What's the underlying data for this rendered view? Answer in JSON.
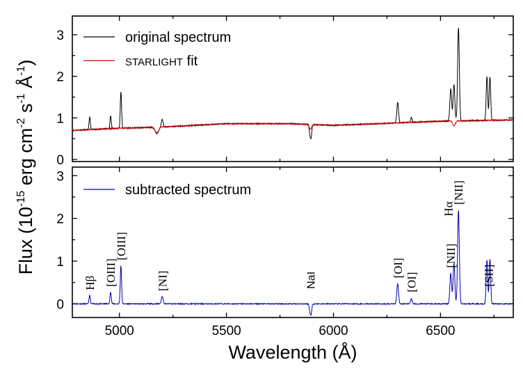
{
  "chart_data": [
    {
      "type": "line",
      "panel": "top",
      "xlim": [
        4780,
        6840
      ],
      "ylim": [
        -0.05,
        3.45
      ],
      "yticks": [
        0,
        1,
        2,
        3
      ],
      "xticks": [
        5000,
        5500,
        6000,
        6500
      ],
      "series": [
        {
          "name": "original spectrum",
          "color": "#000000",
          "baseline": [
            [
              4780,
              0.7
            ],
            [
              5000,
              0.75
            ],
            [
              5200,
              0.78
            ],
            [
              5500,
              0.86
            ],
            [
              5800,
              0.86
            ],
            [
              6000,
              0.82
            ],
            [
              6200,
              0.86
            ],
            [
              6500,
              0.92
            ],
            [
              6840,
              0.95
            ]
          ],
          "features": [
            [
              4861,
              0.3,
              3
            ],
            [
              4959,
              0.32,
              3
            ],
            [
              5007,
              0.88,
              3
            ],
            [
              5200,
              0.2,
              4
            ],
            [
              5175,
              -0.15,
              8
            ],
            [
              5890,
              -0.25,
              3
            ],
            [
              5896,
              -0.28,
              3
            ],
            [
              6300,
              0.5,
              4
            ],
            [
              6364,
              0.12,
              4
            ],
            [
              6548,
              0.78,
              4
            ],
            [
              6563,
              0.88,
              4
            ],
            [
              6584,
              2.25,
              4
            ],
            [
              6717,
              1.05,
              3.5
            ],
            [
              6731,
              1.05,
              3.5
            ]
          ]
        },
        {
          "name": "STARLIGHT fit",
          "color": "#cc0000",
          "baseline": [
            [
              4780,
              0.7
            ],
            [
              5000,
              0.75
            ],
            [
              5200,
              0.78
            ],
            [
              5500,
              0.86
            ],
            [
              5800,
              0.86
            ],
            [
              6000,
              0.82
            ],
            [
              6200,
              0.86
            ],
            [
              6500,
              0.92
            ],
            [
              6840,
              0.95
            ]
          ],
          "features": [
            [
              5175,
              -0.15,
              8
            ],
            [
              5892,
              -0.12,
              5
            ],
            [
              6563,
              -0.12,
              6
            ]
          ]
        }
      ],
      "legend": [
        "original spectrum",
        "STARLIGHT fit"
      ],
      "legend_position": "top-left"
    },
    {
      "type": "line",
      "panel": "bottom",
      "xlim": [
        4780,
        6840
      ],
      "ylim": [
        -0.32,
        3.2
      ],
      "yticks": [
        0,
        1,
        2,
        3
      ],
      "xticks": [
        5000,
        5500,
        6000,
        6500
      ],
      "series": [
        {
          "name": "subtracted spectrum",
          "color": "#0000aa",
          "baseline": [
            [
              4780,
              0.0
            ],
            [
              6840,
              0.0
            ]
          ],
          "features": [
            [
              4861,
              0.2,
              3
            ],
            [
              4959,
              0.28,
              3
            ],
            [
              5007,
              0.9,
              3
            ],
            [
              5200,
              0.18,
              4
            ],
            [
              5890,
              -0.18,
              3
            ],
            [
              5896,
              -0.22,
              3
            ],
            [
              6300,
              0.48,
              4
            ],
            [
              6364,
              0.12,
              4
            ],
            [
              6548,
              0.72,
              4
            ],
            [
              6563,
              0.95,
              4
            ],
            [
              6584,
              2.2,
              4
            ],
            [
              6717,
              1.02,
              3.5
            ],
            [
              6731,
              1.05,
              3.5
            ]
          ]
        }
      ],
      "legend": [
        "subtracted spectrum"
      ],
      "legend_position": "top-left",
      "annotations": [
        {
          "text": "Hβ",
          "wavelength": 4861
        },
        {
          "text": "[OIII]",
          "wavelength": 4959
        },
        {
          "text": "[OIII]",
          "wavelength": 5007
        },
        {
          "text": "[NI]",
          "wavelength": 5200
        },
        {
          "text": "NaI",
          "wavelength": 5893
        },
        {
          "text": "[OI]",
          "wavelength": 6300
        },
        {
          "text": "[OI]",
          "wavelength": 6364
        },
        {
          "text": "[NII]",
          "wavelength": 6548
        },
        {
          "text": "Hα",
          "wavelength": 6563
        },
        {
          "text": "[NII]",
          "wavelength": 6584
        },
        {
          "text": "[SII]",
          "wavelength": 6724
        }
      ]
    }
  ],
  "axes": {
    "xlabel": "Wavelength (Å)",
    "ylabel_prefix": "Flux (10",
    "ylabel_exp1": "-15",
    "ylabel_mid": " erg cm",
    "ylabel_exp2": "-2",
    "ylabel_s": " s",
    "ylabel_exp3": "-1",
    "ylabel_A": " Å",
    "ylabel_exp4": "-1",
    "ylabel_close": ")"
  },
  "legend_labels": {
    "original": "original spectrum",
    "starlight_caps": "STARLIGHT",
    "fit": " fit",
    "subtracted": "subtracted spectrum"
  }
}
